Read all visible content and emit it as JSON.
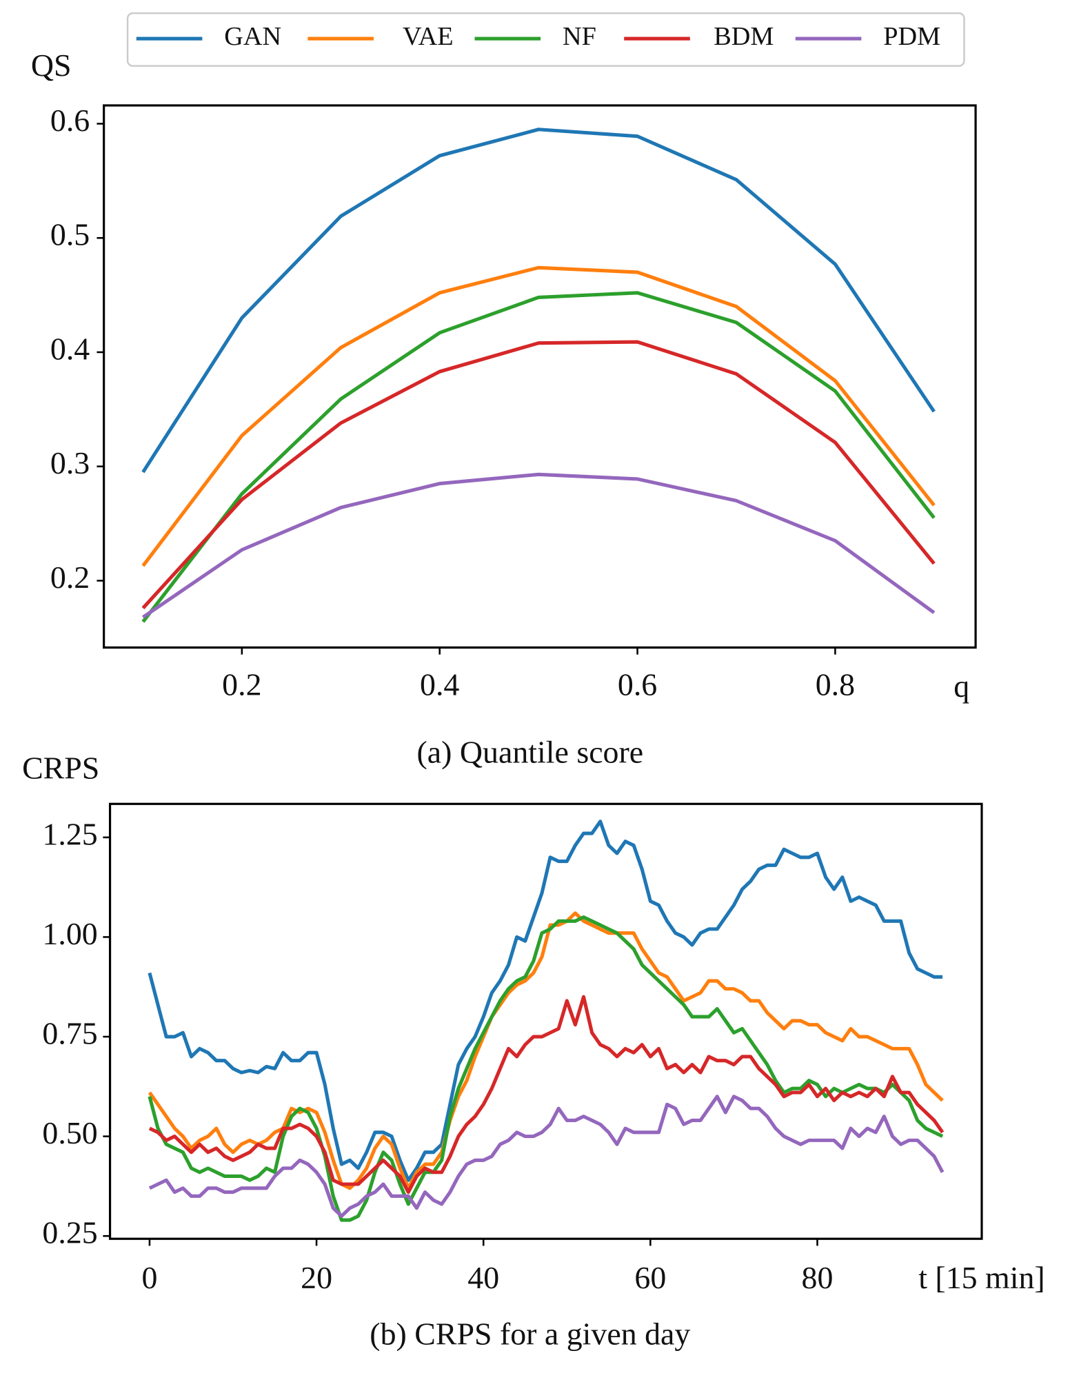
{
  "chart_data": [
    {
      "type": "line",
      "ylabel": "QS",
      "xlabel": "q",
      "caption": "(a) Quantile score",
      "legend": "top",
      "x": [
        0.1,
        0.2,
        0.3,
        0.4,
        0.5,
        0.6,
        0.7,
        0.8,
        0.9
      ],
      "series": [
        {
          "name": "GAN",
          "color": "#1f77b4",
          "values": [
            0.295,
            0.43,
            0.519,
            0.572,
            0.595,
            0.589,
            0.551,
            0.477,
            0.348
          ]
        },
        {
          "name": "VAE",
          "color": "#ff7f0e",
          "values": [
            0.213,
            0.327,
            0.404,
            0.452,
            0.474,
            0.47,
            0.44,
            0.375,
            0.266
          ]
        },
        {
          "name": "NF",
          "color": "#2ca02c",
          "values": [
            0.164,
            0.276,
            0.359,
            0.417,
            0.448,
            0.452,
            0.426,
            0.366,
            0.255
          ]
        },
        {
          "name": "BDM",
          "color": "#d62728",
          "values": [
            0.176,
            0.271,
            0.338,
            0.383,
            0.408,
            0.409,
            0.381,
            0.321,
            0.215
          ]
        },
        {
          "name": "PDM",
          "color": "#9467bd",
          "values": [
            0.168,
            0.227,
            0.264,
            0.285,
            0.293,
            0.289,
            0.27,
            0.235,
            0.172
          ]
        }
      ],
      "xlim": [
        0.0604,
        0.942
      ],
      "ylim": [
        0.1415,
        0.616
      ],
      "xticks": [
        0.2,
        0.4,
        0.6,
        0.8
      ],
      "yticks": [
        0.2,
        0.3,
        0.4,
        0.5,
        0.6
      ]
    },
    {
      "type": "line",
      "ylabel": "CRPS",
      "xlabel": "t [15 min]",
      "caption": "(b) CRPS for a given day",
      "x": [
        0,
        1,
        2,
        3,
        4,
        5,
        6,
        7,
        8,
        9,
        10,
        11,
        12,
        13,
        14,
        15,
        16,
        17,
        18,
        19,
        20,
        21,
        22,
        23,
        24,
        25,
        26,
        27,
        28,
        29,
        30,
        31,
        32,
        33,
        34,
        35,
        36,
        37,
        38,
        39,
        40,
        41,
        42,
        43,
        44,
        45,
        46,
        47,
        48,
        49,
        50,
        51,
        52,
        53,
        54,
        55,
        56,
        57,
        58,
        59,
        60,
        61,
        62,
        63,
        64,
        65,
        66,
        67,
        68,
        69,
        70,
        71,
        72,
        73,
        74,
        75,
        76,
        77,
        78,
        79,
        80,
        81,
        82,
        83,
        84,
        85,
        86,
        87,
        88,
        89,
        90,
        91,
        92,
        93,
        94,
        95
      ],
      "series": [
        {
          "color": "#1f77b4",
          "values": [
            0.91,
            0.83,
            0.75,
            0.75,
            0.76,
            0.7,
            0.72,
            0.71,
            0.69,
            0.69,
            0.67,
            0.66,
            0.665,
            0.66,
            0.675,
            0.67,
            0.71,
            0.69,
            0.69,
            0.71,
            0.71,
            0.63,
            0.52,
            0.43,
            0.44,
            0.42,
            0.46,
            0.51,
            0.51,
            0.5,
            0.44,
            0.39,
            0.42,
            0.46,
            0.46,
            0.48,
            0.58,
            0.68,
            0.72,
            0.75,
            0.8,
            0.86,
            0.89,
            0.93,
            1.0,
            0.99,
            1.05,
            1.11,
            1.2,
            1.19,
            1.19,
            1.23,
            1.26,
            1.26,
            1.29,
            1.23,
            1.21,
            1.24,
            1.23,
            1.17,
            1.09,
            1.08,
            1.04,
            1.01,
            1.0,
            0.98,
            1.01,
            1.02,
            1.02,
            1.05,
            1.08,
            1.12,
            1.14,
            1.17,
            1.18,
            1.18,
            1.22,
            1.21,
            1.2,
            1.2,
            1.21,
            1.15,
            1.12,
            1.15,
            1.09,
            1.1,
            1.09,
            1.08,
            1.04,
            1.04,
            1.04,
            0.96,
            0.92,
            0.91,
            0.9,
            0.9
          ]
        },
        {
          "color": "#ff7f0e",
          "values": [
            0.61,
            0.58,
            0.55,
            0.52,
            0.5,
            0.47,
            0.49,
            0.5,
            0.52,
            0.48,
            0.46,
            0.48,
            0.49,
            0.48,
            0.49,
            0.51,
            0.52,
            0.57,
            0.56,
            0.57,
            0.56,
            0.51,
            0.44,
            0.38,
            0.37,
            0.39,
            0.42,
            0.47,
            0.5,
            0.48,
            0.42,
            0.37,
            0.41,
            0.43,
            0.43,
            0.46,
            0.54,
            0.6,
            0.64,
            0.7,
            0.75,
            0.8,
            0.83,
            0.86,
            0.88,
            0.89,
            0.91,
            0.95,
            1.03,
            1.03,
            1.04,
            1.06,
            1.04,
            1.03,
            1.02,
            1.01,
            1.01,
            1.01,
            1.01,
            0.97,
            0.94,
            0.91,
            0.9,
            0.87,
            0.84,
            0.85,
            0.86,
            0.89,
            0.89,
            0.87,
            0.87,
            0.86,
            0.84,
            0.84,
            0.81,
            0.79,
            0.77,
            0.79,
            0.79,
            0.78,
            0.78,
            0.76,
            0.75,
            0.74,
            0.77,
            0.75,
            0.75,
            0.74,
            0.73,
            0.72,
            0.72,
            0.72,
            0.68,
            0.63,
            0.61,
            0.59
          ]
        },
        {
          "color": "#2ca02c",
          "values": [
            0.6,
            0.52,
            0.48,
            0.47,
            0.46,
            0.42,
            0.41,
            0.42,
            0.41,
            0.4,
            0.4,
            0.4,
            0.39,
            0.4,
            0.42,
            0.41,
            0.5,
            0.55,
            0.57,
            0.56,
            0.52,
            0.45,
            0.35,
            0.29,
            0.29,
            0.3,
            0.34,
            0.41,
            0.46,
            0.44,
            0.38,
            0.33,
            0.37,
            0.41,
            0.41,
            0.44,
            0.55,
            0.62,
            0.67,
            0.72,
            0.76,
            0.8,
            0.84,
            0.87,
            0.89,
            0.9,
            0.94,
            1.01,
            1.02,
            1.04,
            1.04,
            1.04,
            1.05,
            1.04,
            1.03,
            1.02,
            1.01,
            0.99,
            0.97,
            0.93,
            0.91,
            0.89,
            0.87,
            0.85,
            0.83,
            0.8,
            0.8,
            0.8,
            0.82,
            0.79,
            0.76,
            0.77,
            0.74,
            0.71,
            0.68,
            0.64,
            0.61,
            0.62,
            0.62,
            0.64,
            0.63,
            0.6,
            0.62,
            0.61,
            0.62,
            0.63,
            0.62,
            0.62,
            0.61,
            0.63,
            0.61,
            0.59,
            0.54,
            0.52,
            0.51,
            0.5
          ]
        },
        {
          "color": "#d62728",
          "values": [
            0.52,
            0.51,
            0.49,
            0.5,
            0.48,
            0.46,
            0.48,
            0.46,
            0.47,
            0.45,
            0.44,
            0.45,
            0.46,
            0.48,
            0.47,
            0.47,
            0.52,
            0.52,
            0.53,
            0.52,
            0.5,
            0.46,
            0.39,
            0.38,
            0.38,
            0.38,
            0.4,
            0.42,
            0.44,
            0.42,
            0.4,
            0.36,
            0.4,
            0.42,
            0.41,
            0.41,
            0.45,
            0.5,
            0.53,
            0.55,
            0.58,
            0.62,
            0.67,
            0.72,
            0.7,
            0.73,
            0.75,
            0.75,
            0.76,
            0.77,
            0.84,
            0.78,
            0.85,
            0.76,
            0.73,
            0.72,
            0.7,
            0.72,
            0.71,
            0.73,
            0.7,
            0.72,
            0.67,
            0.68,
            0.66,
            0.68,
            0.66,
            0.7,
            0.69,
            0.69,
            0.68,
            0.7,
            0.7,
            0.67,
            0.65,
            0.63,
            0.6,
            0.61,
            0.61,
            0.63,
            0.6,
            0.62,
            0.59,
            0.61,
            0.6,
            0.61,
            0.6,
            0.62,
            0.6,
            0.65,
            0.61,
            0.61,
            0.58,
            0.56,
            0.54,
            0.51
          ]
        },
        {
          "color": "#9467bd",
          "values": [
            0.37,
            0.38,
            0.39,
            0.36,
            0.37,
            0.35,
            0.35,
            0.37,
            0.37,
            0.36,
            0.36,
            0.37,
            0.37,
            0.37,
            0.37,
            0.4,
            0.42,
            0.42,
            0.44,
            0.43,
            0.41,
            0.38,
            0.32,
            0.3,
            0.32,
            0.33,
            0.35,
            0.36,
            0.38,
            0.35,
            0.35,
            0.35,
            0.32,
            0.36,
            0.34,
            0.33,
            0.36,
            0.4,
            0.43,
            0.44,
            0.44,
            0.45,
            0.48,
            0.49,
            0.51,
            0.5,
            0.5,
            0.51,
            0.53,
            0.57,
            0.54,
            0.54,
            0.55,
            0.54,
            0.53,
            0.51,
            0.48,
            0.52,
            0.51,
            0.51,
            0.51,
            0.51,
            0.58,
            0.57,
            0.53,
            0.54,
            0.54,
            0.57,
            0.6,
            0.56,
            0.6,
            0.59,
            0.57,
            0.57,
            0.55,
            0.52,
            0.5,
            0.49,
            0.48,
            0.49,
            0.49,
            0.49,
            0.49,
            0.47,
            0.52,
            0.5,
            0.52,
            0.51,
            0.55,
            0.5,
            0.48,
            0.49,
            0.49,
            0.47,
            0.45,
            0.41
          ]
        }
      ],
      "xlim": [
        -4.74,
        99.7
      ],
      "ylim": [
        0.243,
        1.334
      ],
      "xticks": [
        0,
        20,
        40,
        60,
        80
      ],
      "yticks": [
        0.25,
        {
          "value": 0.5,
          "label": "0.50"
        },
        0.75,
        {
          "value": 1.0,
          "label": "1.00"
        },
        1.25
      ]
    }
  ]
}
